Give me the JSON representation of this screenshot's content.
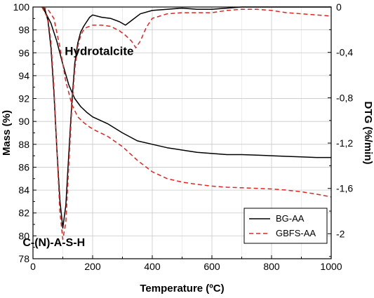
{
  "chart_data": {
    "type": "line",
    "xlabel": "Temperature (ºC)",
    "ylabel": "Mass (%)",
    "y2label": "DTG (%/min)",
    "xlim": [
      0,
      1000
    ],
    "ylim": [
      78,
      100
    ],
    "y2lim": [
      -2.22,
      0
    ],
    "x_ticks": [
      "0",
      "200",
      "400",
      "600",
      "800",
      "1000"
    ],
    "y_ticks": [
      "78",
      "80",
      "82",
      "84",
      "86",
      "88",
      "90",
      "92",
      "94",
      "96",
      "98",
      "100"
    ],
    "y2_ticks": [
      {
        "value": 0,
        "label": "0"
      },
      {
        "value": -0.4,
        "label": "-0,4"
      },
      {
        "value": -0.8,
        "label": "-0,8"
      },
      {
        "value": -1.2,
        "label": "-1,2"
      },
      {
        "value": -1.6,
        "label": "-1,6"
      },
      {
        "value": -2.0,
        "label": "-2"
      }
    ],
    "grid": true,
    "legend_position": "bottom-right",
    "annotations": [
      {
        "text": "Hydrotalcite",
        "x": 222,
        "y": 95.8,
        "size": 17
      },
      {
        "text": "C-(N)-A-S-H",
        "x": 70,
        "y": 79.1,
        "size": 16
      }
    ],
    "series": [
      {
        "name": "BG-AA",
        "color": "#000000",
        "dash": "none",
        "mass": {
          "x": [
            30,
            40,
            60,
            80,
            100,
            120,
            140,
            160,
            180,
            200,
            250,
            300,
            350,
            400,
            450,
            500,
            550,
            600,
            650,
            700,
            750,
            800,
            850,
            900,
            950,
            1000
          ],
          "y": [
            100,
            99.6,
            98.6,
            97.0,
            95.0,
            93.2,
            92.0,
            91.3,
            90.8,
            90.4,
            89.8,
            89.0,
            88.3,
            88.0,
            87.7,
            87.5,
            87.3,
            87.2,
            87.1,
            87.1,
            87.05,
            87.0,
            86.95,
            86.9,
            86.85,
            86.85
          ]
        },
        "dtg": {
          "x": [
            30,
            40,
            50,
            60,
            70,
            80,
            90,
            100,
            110,
            120,
            130,
            140,
            150,
            160,
            170,
            180,
            190,
            200,
            230,
            260,
            290,
            310,
            330,
            360,
            400,
            450,
            500,
            550,
            600,
            650,
            700,
            750,
            800,
            850,
            900,
            950,
            1000
          ],
          "y": [
            0,
            -0.02,
            -0.12,
            -0.35,
            -0.75,
            -1.25,
            -1.7,
            -1.95,
            -1.75,
            -1.3,
            -0.85,
            -0.5,
            -0.32,
            -0.22,
            -0.17,
            -0.13,
            -0.09,
            -0.07,
            -0.09,
            -0.1,
            -0.13,
            -0.16,
            -0.12,
            -0.06,
            -0.03,
            -0.02,
            -0.01,
            -0.02,
            -0.02,
            -0.01,
            0,
            0,
            0,
            0,
            0,
            0,
            0
          ]
        }
      },
      {
        "name": "GBFS-AA",
        "color": "#e8211d",
        "dash": "6,4",
        "mass": {
          "x": [
            30,
            50,
            70,
            90,
            110,
            130,
            150,
            170,
            190,
            210,
            250,
            300,
            350,
            400,
            450,
            500,
            550,
            600,
            650,
            700,
            750,
            800,
            850,
            900,
            950,
            1000
          ],
          "y": [
            100,
            99.8,
            99.0,
            96.5,
            93.5,
            91.5,
            90.4,
            89.9,
            89.5,
            89.2,
            88.7,
            87.8,
            86.6,
            85.6,
            85.0,
            84.7,
            84.5,
            84.35,
            84.25,
            84.2,
            84.15,
            84.1,
            84.0,
            83.85,
            83.65,
            83.4
          ]
        },
        "dtg": {
          "x": [
            30,
            50,
            60,
            70,
            80,
            90,
            100,
            110,
            120,
            130,
            140,
            150,
            160,
            170,
            180,
            200,
            230,
            260,
            290,
            310,
            330,
            345,
            360,
            380,
            400,
            450,
            500,
            550,
            600,
            650,
            700,
            750,
            800,
            850,
            900,
            950,
            1000
          ],
          "y": [
            0,
            -0.1,
            -0.3,
            -0.7,
            -1.25,
            -1.8,
            -2.05,
            -1.9,
            -1.4,
            -0.9,
            -0.55,
            -0.35,
            -0.25,
            -0.2,
            -0.18,
            -0.16,
            -0.16,
            -0.17,
            -0.21,
            -0.25,
            -0.3,
            -0.36,
            -0.3,
            -0.18,
            -0.1,
            -0.06,
            -0.05,
            -0.05,
            -0.05,
            -0.03,
            -0.02,
            -0.02,
            -0.03,
            -0.05,
            -0.06,
            -0.07,
            -0.08
          ]
        }
      }
    ]
  }
}
